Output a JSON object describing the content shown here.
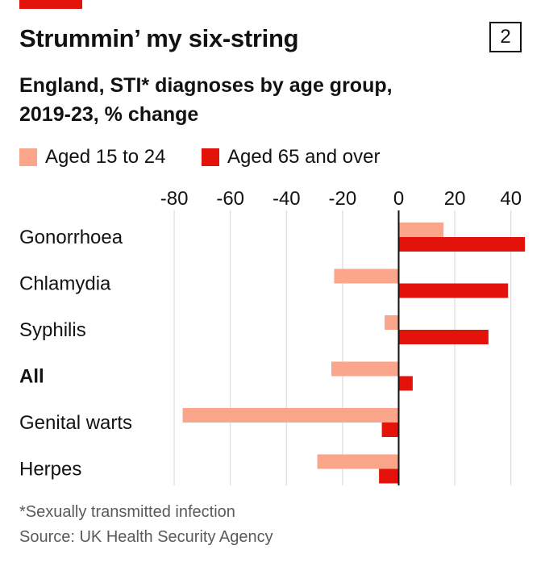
{
  "header": {
    "title": "Strummin’ my six-string",
    "chart_number": "2",
    "subtitle_line1": "England, STI* diagnoses by age group,",
    "subtitle_line2": "2019-23, % change"
  },
  "colors": {
    "accent": "#e3120b",
    "series_young": "#fba58a",
    "series_old": "#e3120b",
    "zero_line": "#121212",
    "grid": "#d6d6d6"
  },
  "chart_data": {
    "type": "bar",
    "orientation": "horizontal",
    "title": "Strummin’ my six-string",
    "subtitle": "England, STI* diagnoses by age group, 2019-23, % change",
    "categories": [
      "Gonorrhoea",
      "Chlamydia",
      "Syphilis",
      "All",
      "Genital warts",
      "Herpes"
    ],
    "bold_categories": [
      "All"
    ],
    "series": [
      {
        "name": "Aged 15 to 24",
        "color": "#fba58a",
        "values": [
          16,
          -23,
          -5,
          -24,
          -77,
          -29
        ]
      },
      {
        "name": "Aged 65 and over",
        "color": "#e3120b",
        "values": [
          45,
          39,
          32,
          5,
          -6,
          -7
        ]
      }
    ],
    "xlim": [
      -80,
      45
    ],
    "xticks": [
      -80,
      -60,
      -40,
      -20,
      0,
      20,
      40
    ],
    "xtick_labels": [
      "-80",
      "-60",
      "-40",
      "-20",
      "0",
      "20",
      "40"
    ],
    "axis_position": "top",
    "grid": true,
    "legend_placement": "top-left"
  },
  "footnote": "*Sexually transmitted infection",
  "source": "Source: UK Health Security Agency"
}
